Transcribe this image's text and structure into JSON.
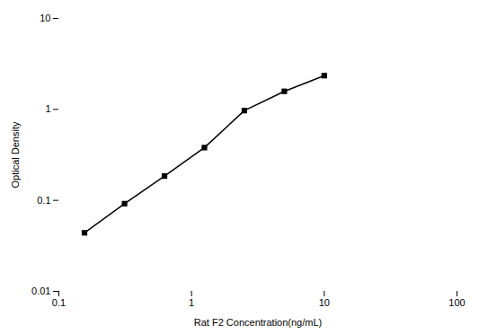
{
  "chart_data": {
    "type": "line",
    "x": [
      0.156,
      0.3125,
      0.625,
      1.25,
      2.5,
      5.0,
      10.0
    ],
    "values": [
      0.044,
      0.092,
      0.185,
      0.38,
      0.97,
      1.58,
      2.35
    ],
    "xlabel": "Rat F2 Concentration(ng/mL)",
    "ylabel": "Optical Density",
    "xlim": [
      0.1,
      100
    ],
    "ylim": [
      0.01,
      10
    ],
    "xticks": [
      0.1,
      1,
      10,
      100
    ],
    "yticks": [
      0.01,
      0.1,
      1,
      10
    ],
    "log": true,
    "grid": false,
    "marker": "square"
  }
}
